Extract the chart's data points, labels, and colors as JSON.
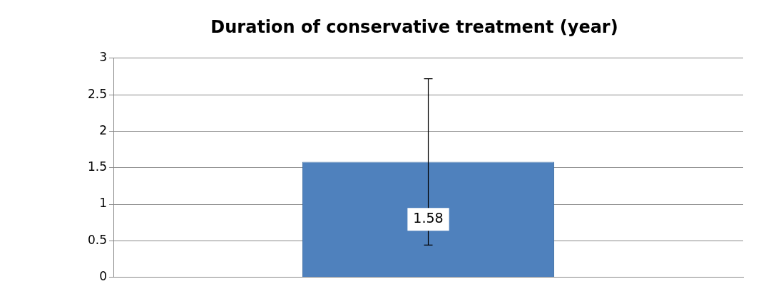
{
  "chart_data": {
    "type": "bar",
    "title": "Duration of conservative treatment (year)",
    "categories": [
      null
    ],
    "values": [
      1.58
    ],
    "errors": [
      1.14
    ],
    "color": "#4f81bd",
    "ylim": [
      0,
      3
    ],
    "yticks": [
      0,
      0.5,
      1,
      1.5,
      2,
      2.5,
      3
    ],
    "grid": "y",
    "data_labels": true,
    "legend": false
  }
}
